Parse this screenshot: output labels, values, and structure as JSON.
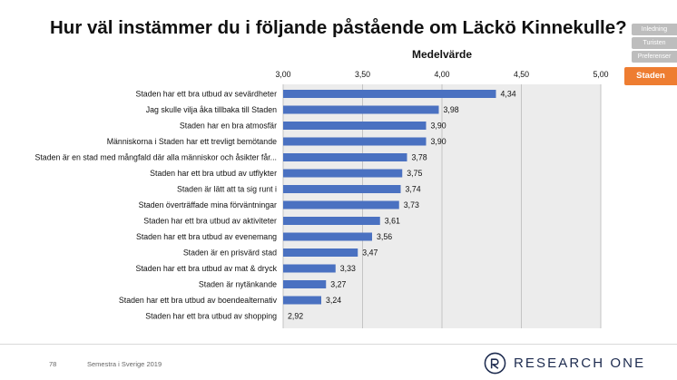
{
  "title": "Hur väl instämmer du i följande påstående om Läckö Kinnekulle?",
  "nav": {
    "items": [
      "Inledning",
      "Turisten",
      "Preferenser"
    ],
    "active": "Staden"
  },
  "footer": {
    "page_number": "78",
    "text": "Semestra i Sverige 2019",
    "brand": "RESEARCH ONE"
  },
  "colors": {
    "bar": "#4a71c1",
    "plot_background": "#ececec",
    "accent": "#ee7d31",
    "brand": "#1d2b4f"
  },
  "chart_data": {
    "type": "bar",
    "orientation": "horizontal",
    "title": "Medelvärde",
    "xlim": [
      3.0,
      5.0
    ],
    "ticks": [
      3.0,
      3.5,
      4.0,
      4.5,
      5.0
    ],
    "tick_labels": [
      "3,00",
      "3,50",
      "4,00",
      "4,50",
      "5,00"
    ],
    "categories": [
      "Staden har ett bra utbud av sevärdheter",
      "Jag skulle vilja åka tillbaka till Staden",
      "Staden har en bra atmosfär",
      "Människorna i Staden har ett trevligt bemötande",
      "Staden är en stad med mångfald där alla människor och åsikter får...",
      "Staden har ett bra utbud av utflykter",
      "Staden är lätt att ta sig runt i",
      "Staden överträffade mina förväntningar",
      "Staden har ett bra utbud av aktiviteter",
      "Staden har ett bra utbud av evenemang",
      "Staden är en prisvärd stad",
      "Staden har ett bra utbud av mat & dryck",
      "Staden är nytänkande",
      "Staden har ett bra utbud av boendealternativ",
      "Staden har ett bra utbud av shopping"
    ],
    "values": [
      4.34,
      3.98,
      3.9,
      3.9,
      3.78,
      3.75,
      3.74,
      3.73,
      3.61,
      3.56,
      3.47,
      3.33,
      3.27,
      3.24,
      2.92
    ],
    "value_labels": [
      "4,34",
      "3,98",
      "3,90",
      "3,90",
      "3,78",
      "3,75",
      "3,74",
      "3,73",
      "3,61",
      "3,56",
      "3,47",
      "3,33",
      "3,27",
      "3,24",
      "2,92"
    ]
  }
}
